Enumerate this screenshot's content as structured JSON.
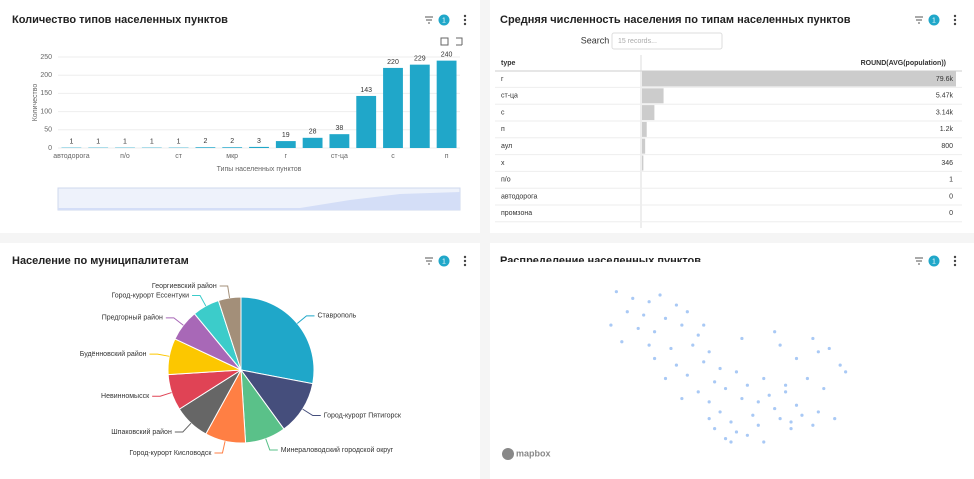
{
  "filters": [
    1,
    1,
    1,
    1
  ],
  "table": {
    "title": "Средняя численность населения по типам населенных пунктов",
    "search_label": "Search",
    "search_placeholder": "15 records...",
    "columns": [
      "type",
      "ROUND(AVG(population))"
    ],
    "rows": [
      {
        "type": "г",
        "value": 79600,
        "label": "79.6k"
      },
      {
        "type": "ст-ца",
        "value": 5470,
        "label": "5.47k"
      },
      {
        "type": "с",
        "value": 3140,
        "label": "3.14k"
      },
      {
        "type": "п",
        "value": 1200,
        "label": "1.2k"
      },
      {
        "type": "аул",
        "value": 800,
        "label": "800"
      },
      {
        "type": "х",
        "value": 346,
        "label": "346"
      },
      {
        "type": "п/о",
        "value": 1,
        "label": "1"
      },
      {
        "type": "автодорога",
        "value": 0,
        "label": "0"
      },
      {
        "type": "промзона",
        "value": 0,
        "label": "0"
      }
    ]
  },
  "chart_data": [
    {
      "type": "bar",
      "title": "Количество типов населенных пунктов",
      "xlabel": "Типы населенных пунктов",
      "ylabel": "Количество",
      "color": "#20a7c9",
      "categories": [
        "автодорога",
        null,
        "п/о",
        null,
        "ст",
        null,
        "мкр",
        null,
        "г",
        null,
        "ст-ца",
        null,
        "с",
        null,
        "п"
      ],
      "values": [
        1,
        1,
        1,
        1,
        1,
        2,
        2,
        3,
        19,
        28,
        38,
        143,
        220,
        229,
        240
      ],
      "ylim": [
        0,
        250
      ],
      "yticks": [
        0,
        50,
        100,
        150,
        200,
        250
      ],
      "grid": true
    },
    {
      "type": "pie",
      "title": "Население по муниципалитетам",
      "categories": [
        "Ставрополь",
        "Город-курорт Пятигорск",
        "Минераловодский городской округ",
        "Город-курорт Кисловодск",
        "Шпаковский район",
        "Невинномысск",
        "Будённовский район",
        "Предгорный район",
        "Город-курорт Ессентуки",
        "Георгиевский район"
      ],
      "values": [
        28,
        12,
        9,
        9,
        8,
        8,
        8,
        7,
        6,
        5
      ],
      "colors": [
        "#1fa7c9",
        "#454e7c",
        "#5ac189",
        "#ff7f44",
        "#666666",
        "#e04355",
        "#fcc700",
        "#a868b7",
        "#3cccca",
        "#a38f79"
      ]
    },
    {
      "type": "scatter",
      "title": "Распределение населенных пунктов",
      "attribution": "mapbox",
      "color": "#a9c9f5",
      "xlim": [
        41,
        45.8
      ],
      "ylim": [
        43.7,
        46.2
      ],
      "x": [
        41.3,
        41.6,
        41.9,
        42.1,
        42.4,
        41.5,
        41.8,
        42.2,
        42.6,
        41.2,
        41.7,
        42.0,
        42.5,
        42.8,
        41.4,
        41.9,
        42.3,
        42.7,
        43.0,
        42.0,
        42.4,
        42.9,
        43.2,
        42.2,
        42.6,
        43.1,
        43.5,
        42.8,
        43.3,
        43.7,
        44.0,
        43.0,
        43.6,
        44.1,
        44.4,
        43.2,
        43.4,
        43.8,
        44.2,
        44.6,
        43.1,
        43.5,
        43.9,
        44.3,
        44.7,
        45.0,
        43.3,
        43.7,
        44.0,
        44.5,
        44.9,
        45.3,
        44.4,
        44.8,
        45.1,
        45.5,
        44.6,
        45.0,
        45.4,
        44.3,
        44.9,
        45.2,
        42.9,
        43.6,
        44.2,
        43.9,
        44.5,
        42.5,
        43.0,
        43.4
      ],
      "values": [
        46.1,
        46.0,
        45.95,
        46.05,
        45.9,
        45.8,
        45.75,
        45.7,
        45.8,
        45.6,
        45.55,
        45.5,
        45.6,
        45.45,
        45.35,
        45.3,
        45.25,
        45.3,
        45.2,
        45.1,
        45.0,
        45.05,
        44.95,
        44.8,
        44.85,
        44.75,
        44.9,
        44.6,
        44.65,
        44.7,
        44.8,
        44.45,
        44.5,
        44.55,
        44.6,
        44.3,
        44.15,
        44.25,
        44.35,
        44.4,
        44.05,
        44.0,
        44.1,
        44.2,
        44.25,
        44.3,
        43.9,
        43.95,
        43.85,
        44.05,
        44.1,
        44.2,
        44.7,
        44.8,
        44.65,
        44.9,
        45.1,
        45.2,
        45.0,
        45.3,
        45.4,
        45.25,
        45.6,
        45.4,
        45.5,
        44.45,
        44.15,
        44.5,
        44.2,
        43.85
      ]
    }
  ]
}
